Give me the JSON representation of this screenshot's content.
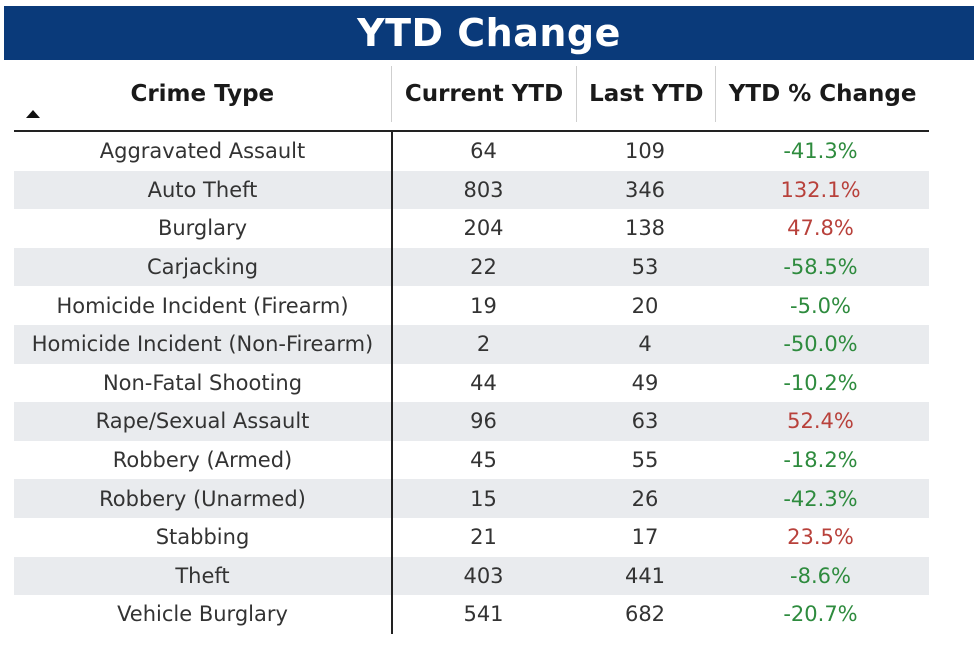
{
  "title": "YTD Change",
  "columns": [
    "Crime Type",
    "Current YTD",
    "Last YTD",
    "YTD % Change"
  ],
  "sort_icon": "sort-ascending-triangle",
  "colors": {
    "banner": "#0a3a7a",
    "negative_change": "#2e8b3e",
    "positive_change": "#b8413b",
    "alt_row": "#e9ebee"
  },
  "rows": [
    {
      "crime": "Aggravated Assault",
      "current": "64",
      "last": "109",
      "change": "-41.3%",
      "dir": "down"
    },
    {
      "crime": "Auto Theft",
      "current": "803",
      "last": "346",
      "change": "132.1%",
      "dir": "up"
    },
    {
      "crime": "Burglary",
      "current": "204",
      "last": "138",
      "change": "47.8%",
      "dir": "up"
    },
    {
      "crime": "Carjacking",
      "current": "22",
      "last": "53",
      "change": "-58.5%",
      "dir": "down"
    },
    {
      "crime": "Homicide Incident (Firearm)",
      "current": "19",
      "last": "20",
      "change": "-5.0%",
      "dir": "down"
    },
    {
      "crime": "Homicide Incident (Non-Firearm)",
      "current": "2",
      "last": "4",
      "change": "-50.0%",
      "dir": "down"
    },
    {
      "crime": "Non-Fatal Shooting",
      "current": "44",
      "last": "49",
      "change": "-10.2%",
      "dir": "down"
    },
    {
      "crime": "Rape/Sexual Assault",
      "current": "96",
      "last": "63",
      "change": "52.4%",
      "dir": "up"
    },
    {
      "crime": "Robbery (Armed)",
      "current": "45",
      "last": "55",
      "change": "-18.2%",
      "dir": "down"
    },
    {
      "crime": "Robbery (Unarmed)",
      "current": "15",
      "last": "26",
      "change": "-42.3%",
      "dir": "down"
    },
    {
      "crime": "Stabbing",
      "current": "21",
      "last": "17",
      "change": "23.5%",
      "dir": "up"
    },
    {
      "crime": "Theft",
      "current": "403",
      "last": "441",
      "change": "-8.6%",
      "dir": "down"
    },
    {
      "crime": "Vehicle Burglary",
      "current": "541",
      "last": "682",
      "change": "-20.7%",
      "dir": "down"
    }
  ]
}
